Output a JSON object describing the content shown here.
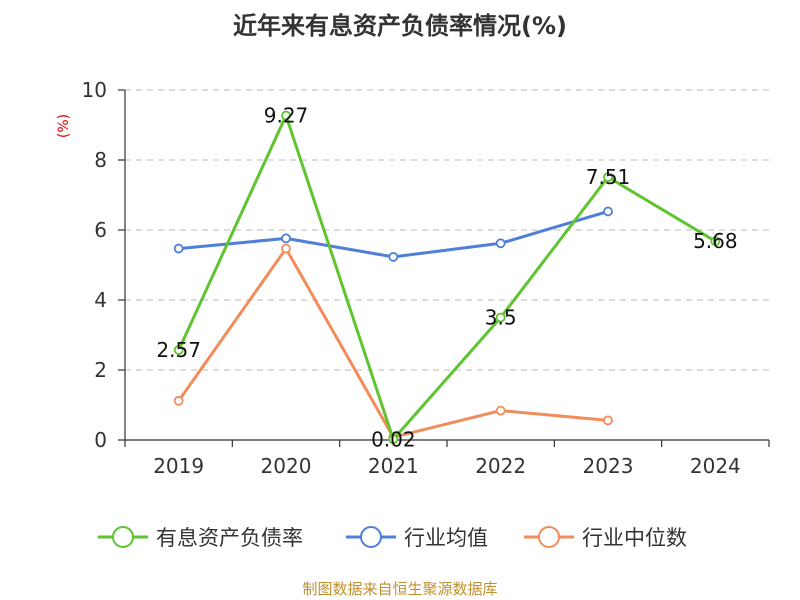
{
  "chart_data": {
    "type": "line",
    "title": "近年来有息资产负债率情况(%)",
    "ylabel": "(%)",
    "xlabel": "",
    "categories": [
      "2019",
      "2020",
      "2021",
      "2022",
      "2023",
      "2024"
    ],
    "ylim": [
      0,
      10
    ],
    "yticks": [
      0,
      2,
      4,
      6,
      8,
      10
    ],
    "grid": true,
    "legend_position": "bottom",
    "series": [
      {
        "name": "有息资产负债率",
        "color": "#5ec430",
        "values": [
          2.57,
          9.27,
          0.02,
          3.5,
          7.51,
          5.68
        ],
        "labels": [
          "2.57",
          "9.27",
          "0.02",
          "3.5",
          "7.51",
          "5.68"
        ],
        "show_labels": true
      },
      {
        "name": "行业均值",
        "color": "#4f7fd9",
        "values": [
          5.47,
          5.76,
          5.23,
          5.62,
          6.53,
          null
        ],
        "show_labels": false
      },
      {
        "name": "行业中位数",
        "color": "#f28c5a",
        "values": [
          1.12,
          5.47,
          0.08,
          0.84,
          0.56,
          null
        ],
        "show_labels": false
      }
    ]
  },
  "source": "制图数据来自恒生聚源数据库"
}
